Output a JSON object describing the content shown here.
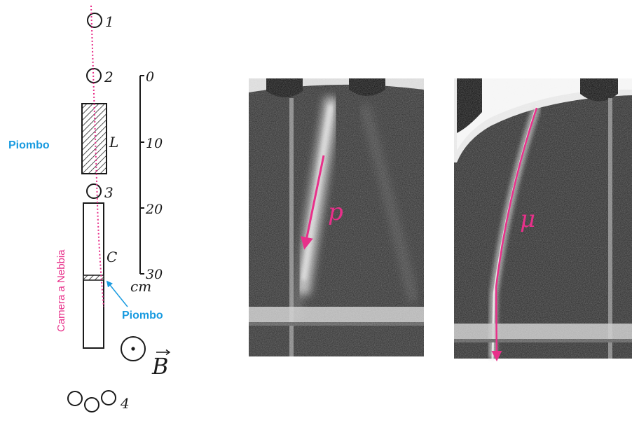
{
  "counters": {
    "c1": "1",
    "c2": "2",
    "c3": "3",
    "c4": "4"
  },
  "absorber_label": "L",
  "chamber_label": "C",
  "scale": {
    "ticks": [
      "0",
      "10",
      "20",
      "30"
    ],
    "unit": "cm"
  },
  "labels": {
    "lead_top": "Piombo",
    "lead_bottom": "Piombo",
    "cloud_chamber": "Camera a Nebbia",
    "field_symbol": "B"
  },
  "photos": {
    "left_particle": "p",
    "right_particle": "μ"
  },
  "colors": {
    "lead_label": "#1a9be0",
    "track_annotation": "#e8308a"
  },
  "icons": {
    "field": "field-out-of-page-icon"
  }
}
